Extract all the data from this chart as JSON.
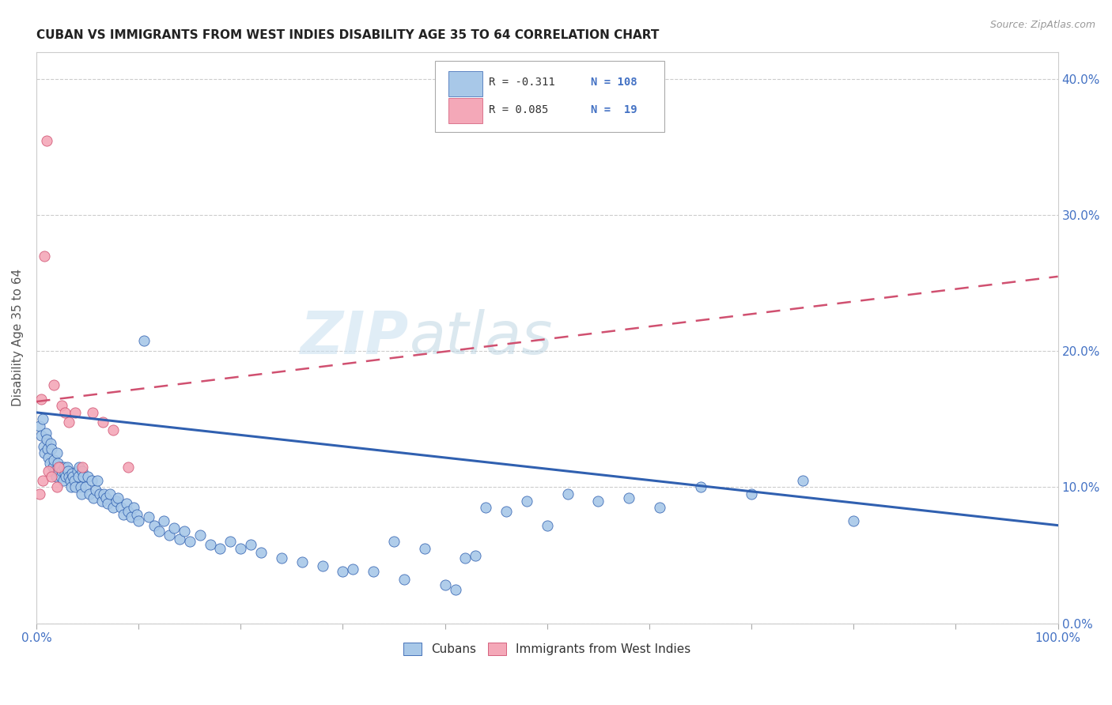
{
  "title": "CUBAN VS IMMIGRANTS FROM WEST INDIES DISABILITY AGE 35 TO 64 CORRELATION CHART",
  "source": "Source: ZipAtlas.com",
  "ylabel": "Disability Age 35 to 64",
  "yticks_labels": [
    "0.0%",
    "10.0%",
    "20.0%",
    "30.0%",
    "40.0%"
  ],
  "ytick_vals": [
    0.0,
    0.1,
    0.2,
    0.3,
    0.4
  ],
  "watermark": "ZIPatlas",
  "legend_r1": "R = -0.311",
  "legend_n1": "N = 108",
  "legend_r2": "R = 0.085",
  "legend_n2": "N =  19",
  "cubans_color": "#a8c8e8",
  "west_indies_color": "#f4a8b8",
  "trendline_cubans_color": "#3060b0",
  "trendline_wi_color": "#d05070",
  "background_color": "#ffffff",
  "cubans_x": [
    0.003,
    0.005,
    0.006,
    0.007,
    0.008,
    0.009,
    0.01,
    0.011,
    0.012,
    0.013,
    0.014,
    0.015,
    0.016,
    0.017,
    0.018,
    0.019,
    0.02,
    0.021,
    0.022,
    0.023,
    0.024,
    0.025,
    0.026,
    0.027,
    0.028,
    0.029,
    0.03,
    0.031,
    0.032,
    0.033,
    0.034,
    0.035,
    0.036,
    0.037,
    0.038,
    0.04,
    0.041,
    0.042,
    0.043,
    0.044,
    0.045,
    0.046,
    0.048,
    0.05,
    0.052,
    0.054,
    0.056,
    0.058,
    0.06,
    0.062,
    0.064,
    0.066,
    0.068,
    0.07,
    0.072,
    0.075,
    0.078,
    0.08,
    0.083,
    0.085,
    0.088,
    0.09,
    0.093,
    0.095,
    0.098,
    0.1,
    0.105,
    0.11,
    0.115,
    0.12,
    0.125,
    0.13,
    0.135,
    0.14,
    0.145,
    0.15,
    0.16,
    0.17,
    0.18,
    0.19,
    0.2,
    0.21,
    0.22,
    0.24,
    0.26,
    0.28,
    0.3,
    0.35,
    0.38,
    0.42,
    0.46,
    0.5,
    0.52,
    0.55,
    0.58,
    0.61,
    0.65,
    0.7,
    0.75,
    0.8,
    0.44,
    0.48,
    0.31,
    0.33,
    0.36,
    0.4,
    0.41,
    0.43
  ],
  "cubans_y": [
    0.145,
    0.138,
    0.15,
    0.13,
    0.125,
    0.14,
    0.135,
    0.128,
    0.122,
    0.118,
    0.132,
    0.128,
    0.115,
    0.12,
    0.112,
    0.108,
    0.125,
    0.118,
    0.112,
    0.115,
    0.108,
    0.112,
    0.105,
    0.115,
    0.11,
    0.108,
    0.115,
    0.112,
    0.108,
    0.105,
    0.1,
    0.11,
    0.108,
    0.105,
    0.1,
    0.112,
    0.108,
    0.115,
    0.1,
    0.095,
    0.112,
    0.108,
    0.1,
    0.108,
    0.095,
    0.105,
    0.092,
    0.098,
    0.105,
    0.095,
    0.09,
    0.095,
    0.092,
    0.088,
    0.095,
    0.085,
    0.09,
    0.092,
    0.085,
    0.08,
    0.088,
    0.082,
    0.078,
    0.085,
    0.08,
    0.075,
    0.208,
    0.078,
    0.072,
    0.068,
    0.075,
    0.065,
    0.07,
    0.062,
    0.068,
    0.06,
    0.065,
    0.058,
    0.055,
    0.06,
    0.055,
    0.058,
    0.052,
    0.048,
    0.045,
    0.042,
    0.038,
    0.06,
    0.055,
    0.048,
    0.082,
    0.072,
    0.095,
    0.09,
    0.092,
    0.085,
    0.1,
    0.095,
    0.105,
    0.075,
    0.085,
    0.09,
    0.04,
    0.038,
    0.032,
    0.028,
    0.025,
    0.05
  ],
  "wi_x": [
    0.003,
    0.005,
    0.006,
    0.008,
    0.01,
    0.012,
    0.015,
    0.017,
    0.02,
    0.022,
    0.025,
    0.028,
    0.032,
    0.038,
    0.045,
    0.055,
    0.065,
    0.075,
    0.09
  ],
  "wi_y": [
    0.095,
    0.165,
    0.105,
    0.27,
    0.355,
    0.112,
    0.108,
    0.175,
    0.1,
    0.115,
    0.16,
    0.155,
    0.148,
    0.155,
    0.115,
    0.155,
    0.148,
    0.142,
    0.115
  ]
}
